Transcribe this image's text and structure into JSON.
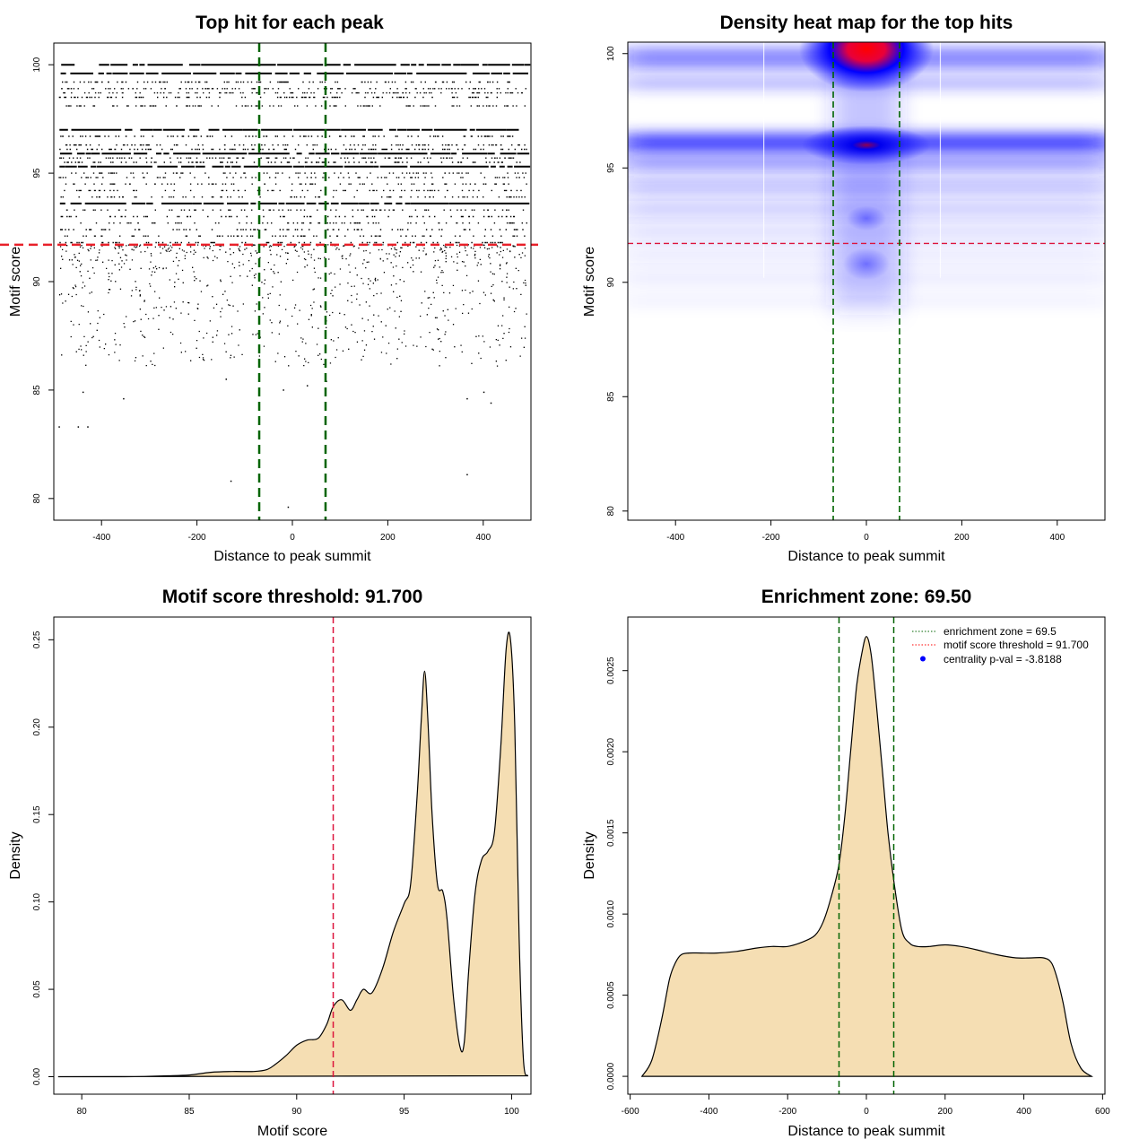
{
  "chart_data": [
    {
      "type": "scatter",
      "title": "Top hit for each peak",
      "xlabel": "Distance to peak summit",
      "ylabel": "Motif score",
      "xlim": [
        -500,
        500
      ],
      "ylim": [
        79,
        101
      ],
      "xticks": [
        -400,
        -200,
        0,
        200,
        400
      ],
      "yticks": [
        80,
        85,
        90,
        95,
        100
      ],
      "score_bands": [
        100,
        99.6,
        99.2,
        98.9,
        98.7,
        98.5,
        98.1,
        97.0,
        96.7,
        96.3,
        96.1,
        95.9,
        95.7,
        95.5,
        95.3,
        95.0,
        94.8,
        94.5,
        94.2,
        93.9,
        93.6,
        93.3,
        93.0,
        92.7,
        92.4,
        92.1,
        91.8
      ],
      "sparse_points": [
        {
          "x": -490,
          "y": 83.3
        },
        {
          "x": -450,
          "y": 83.3
        },
        {
          "x": -430,
          "y": 83.3
        },
        {
          "x": -130,
          "y": 80.8
        },
        {
          "x": -10,
          "y": 79.6
        },
        {
          "x": 365,
          "y": 81.1
        },
        {
          "x": -440,
          "y": 84.9
        },
        {
          "x": -355,
          "y": 84.6
        },
        {
          "x": 365,
          "y": 84.6
        },
        {
          "x": 415,
          "y": 84.4
        },
        {
          "x": 400,
          "y": 84.9
        },
        {
          "x": 30,
          "y": 85.2
        },
        {
          "x": -20,
          "y": 85.0
        },
        {
          "x": 70,
          "y": 85.4
        },
        {
          "x": -140,
          "y": 85.5
        }
      ],
      "hlines": [
        {
          "y": 91.7,
          "color": "#e8202a"
        }
      ],
      "vlines": [
        {
          "x": -69.5,
          "color": "#006400"
        },
        {
          "x": 69.5,
          "color": "#006400"
        }
      ]
    },
    {
      "type": "heatmap",
      "title": "Density heat map for the top hits",
      "xlabel": "Distance to peak summit",
      "ylabel": "Motif score",
      "xlim": [
        -500,
        500
      ],
      "ylim": [
        79.6,
        100.5
      ],
      "xticks": [
        -400,
        -200,
        0,
        200,
        400
      ],
      "yticks": [
        80,
        85,
        90,
        95,
        100
      ],
      "colors": {
        "low": "#ffffff",
        "mid": "#0000ff",
        "high": "#ff0000"
      },
      "hotspots": [
        {
          "x": 0,
          "y": 100.2,
          "level": "high"
        },
        {
          "x": 0,
          "y": 96.0,
          "level": "mid"
        }
      ],
      "hlines": [
        {
          "y": 91.7,
          "color": "#dc143c"
        }
      ],
      "vlines": [
        {
          "x": -69.5,
          "color": "#006400"
        },
        {
          "x": 69.5,
          "color": "#006400"
        }
      ]
    },
    {
      "type": "area",
      "title": "Motif score threshold: 91.700",
      "xlabel": "Motif score",
      "ylabel": "Density",
      "xlim": [
        78.7,
        100.9
      ],
      "ylim": [
        -0.01,
        0.263
      ],
      "xticks": [
        80,
        85,
        90,
        95,
        100
      ],
      "yticks": [
        "0.00",
        "0.05",
        "0.10",
        "0.15",
        "0.20",
        "0.25"
      ],
      "fill": "#f5deb3",
      "x": [
        78.9,
        82.0,
        84.0,
        85.0,
        86.0,
        87.0,
        88.0,
        88.6,
        89.0,
        89.5,
        90.0,
        90.5,
        91.0,
        91.4,
        91.7,
        92.1,
        92.5,
        92.8,
        93.1,
        93.5,
        94.0,
        94.5,
        95.0,
        95.3,
        95.6,
        95.8,
        95.95,
        96.1,
        96.3,
        96.55,
        96.8,
        97.0,
        97.3,
        97.6,
        97.8,
        98.0,
        98.3,
        98.6,
        98.9,
        99.2,
        99.5,
        99.75,
        99.95,
        100.15,
        100.35,
        100.55,
        100.75
      ],
      "y": [
        0.0,
        0.0,
        0.0005,
        0.001,
        0.0025,
        0.003,
        0.003,
        0.004,
        0.007,
        0.012,
        0.018,
        0.021,
        0.022,
        0.03,
        0.04,
        0.044,
        0.038,
        0.044,
        0.05,
        0.048,
        0.062,
        0.083,
        0.099,
        0.11,
        0.16,
        0.205,
        0.232,
        0.205,
        0.15,
        0.11,
        0.106,
        0.09,
        0.045,
        0.017,
        0.02,
        0.06,
        0.105,
        0.124,
        0.129,
        0.14,
        0.19,
        0.245,
        0.25,
        0.2,
        0.08,
        0.01,
        0.0005
      ],
      "vlines": [
        {
          "x": 91.7,
          "color": "#dc143c"
        }
      ]
    },
    {
      "type": "area",
      "title": "Enrichment zone: 69.50",
      "xlabel": "Distance to peak summit",
      "ylabel": "Density",
      "xlim": [
        -606,
        606
      ],
      "ylim": [
        -0.00011,
        0.00283
      ],
      "xticks": [
        -600,
        -400,
        -200,
        0,
        200,
        400,
        600
      ],
      "yticks": [
        "0.0000",
        "0.0005",
        "0.0010",
        "0.0015",
        "0.0020",
        "0.0025"
      ],
      "fill": "#f5deb3",
      "x": [
        -570,
        -545,
        -520,
        -500,
        -485,
        -470,
        -450,
        -420,
        -380,
        -330,
        -280,
        -240,
        -200,
        -160,
        -130,
        -110,
        -90,
        -70,
        -55,
        -40,
        -25,
        -12,
        0,
        12,
        25,
        40,
        55,
        70,
        90,
        110,
        130,
        160,
        200,
        240,
        280,
        330,
        380,
        420,
        450,
        470,
        485,
        500,
        520,
        545,
        572
      ],
      "y": [
        0.0,
        0.0001,
        0.00035,
        0.0006,
        0.0007,
        0.00075,
        0.00076,
        0.00076,
        0.00076,
        0.00077,
        0.00079,
        0.0008,
        0.0008,
        0.00083,
        0.00087,
        0.00095,
        0.0011,
        0.0013,
        0.0016,
        0.002,
        0.0024,
        0.0026,
        0.00271,
        0.0026,
        0.0023,
        0.0019,
        0.0015,
        0.0012,
        0.0009,
        0.00082,
        0.0008,
        0.0008,
        0.00081,
        0.0008,
        0.00078,
        0.00075,
        0.00073,
        0.00073,
        0.00073,
        0.0007,
        0.0006,
        0.00045,
        0.0002,
        5e-05,
        0.0
      ],
      "vlines": [
        {
          "x": -69.5,
          "color": "#006400"
        },
        {
          "x": 69.5,
          "color": "#006400"
        }
      ],
      "legend": {
        "position": "top-right",
        "entries": [
          {
            "label": "enrichment zone = 69.5",
            "color": "#006400",
            "kind": "dotted-line"
          },
          {
            "label": "motif score threshold = 91.700",
            "color": "#ff0000",
            "kind": "dotted-line"
          },
          {
            "label": "centrality p-val = -3.8188",
            "color": "#0000ff",
            "kind": "point"
          }
        ]
      }
    }
  ]
}
